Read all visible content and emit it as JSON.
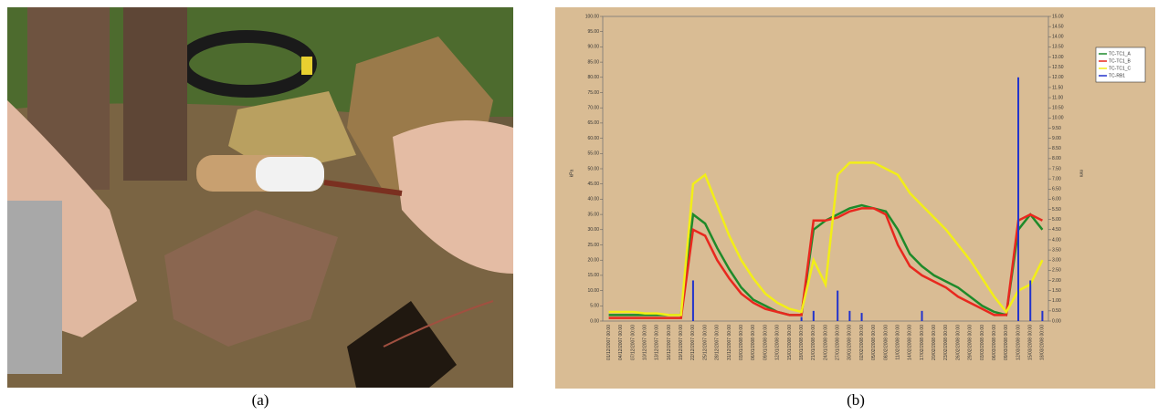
{
  "captions": {
    "a": "(a)",
    "b": "(b)"
  },
  "chart_data": {
    "type": "line",
    "ylabel": "kPa",
    "y2label": "mm",
    "categories": [
      "01/12/2007 00:00",
      "04/12/2007 00:00",
      "07/12/2007 00:00",
      "10/12/2007 00:00",
      "13/12/2007 00:00",
      "16/12/2007 00:00",
      "19/12/2007 00:00",
      "22/12/2007 00:00",
      "25/12/2007 00:00",
      "28/12/2007 00:00",
      "31/12/2007 00:00",
      "03/01/2008 00:00",
      "06/01/2008 00:00",
      "09/01/2008 00:00",
      "12/01/2008 00:00",
      "15/01/2008 00:00",
      "18/01/2008 00:00",
      "21/01/2008 00:00",
      "24/01/2008 00:00",
      "27/01/2008 00:00",
      "30/01/2008 00:00",
      "02/02/2008 00:00",
      "05/02/2008 00:00",
      "08/02/2008 00:00",
      "11/02/2008 00:00",
      "14/02/2008 00:00",
      "17/02/2008 00:00",
      "20/02/2008 00:00",
      "23/02/2008 00:00",
      "26/02/2008 00:00",
      "29/02/2008 00:00",
      "03/03/2008 00:00",
      "06/03/2008 00:00",
      "09/03/2008 00:00",
      "12/03/2008 00:00",
      "15/03/2008 00:00",
      "18/03/2008 00:00"
    ],
    "series": [
      {
        "name": "TC-TC1_A",
        "color": "#1e8a2a",
        "values": [
          2,
          2,
          2,
          2,
          2,
          2,
          2,
          35,
          32,
          24,
          17,
          11,
          7,
          5,
          3,
          2,
          2,
          30,
          33,
          35,
          37,
          38,
          37,
          36,
          30,
          22,
          18,
          15,
          13,
          11,
          8,
          5,
          3,
          2,
          30,
          35,
          30
        ]
      },
      {
        "name": "TC-TC1_B",
        "color": "#e8281e",
        "values": [
          1,
          1,
          1,
          1,
          1,
          1,
          1,
          30,
          28,
          20,
          14,
          9,
          6,
          4,
          3,
          2,
          2,
          33,
          33,
          34,
          36,
          37,
          37,
          35,
          25,
          18,
          15,
          13,
          11,
          8,
          6,
          4,
          2,
          2,
          33,
          35,
          33
        ]
      },
      {
        "name": "TC-TC1_C",
        "color": "#f2ee18",
        "values": [
          3,
          3,
          3,
          2.5,
          2.5,
          2,
          2,
          45,
          48,
          38,
          28,
          20,
          14,
          9,
          6,
          4,
          3,
          20,
          12,
          48,
          52,
          52,
          52,
          50,
          48,
          42,
          38,
          34,
          30,
          25,
          20,
          14,
          8,
          3,
          10,
          12,
          20
        ]
      },
      {
        "name": "TC-RB1",
        "color": "#2233cc",
        "axis": "y2",
        "style": "bar",
        "values": [
          0,
          0,
          0,
          0,
          0,
          0,
          0,
          2,
          0,
          0,
          0,
          0,
          0,
          0,
          0,
          0,
          0.2,
          0.5,
          0,
          1.5,
          0.5,
          0.4,
          0,
          0,
          0,
          0,
          0.5,
          0,
          0,
          0,
          0,
          0,
          0,
          0,
          12,
          2,
          0.5
        ]
      }
    ],
    "ylim": [
      0,
      100
    ],
    "yticks": [
      {
        "value": 0,
        "label": "0.00"
      },
      {
        "value": 5,
        "label": "5.00"
      },
      {
        "value": 10,
        "label": "10.00"
      },
      {
        "value": 15,
        "label": "15.00"
      },
      {
        "value": 20,
        "label": "20.00"
      },
      {
        "value": 25,
        "label": "25.00"
      },
      {
        "value": 30,
        "label": "30.00"
      },
      {
        "value": 35,
        "label": "35.00"
      },
      {
        "value": 40,
        "label": "40.00"
      },
      {
        "value": 45,
        "label": "45.00"
      },
      {
        "value": 50,
        "label": "50.00"
      },
      {
        "value": 55,
        "label": "55.00"
      },
      {
        "value": 60,
        "label": "60.00"
      },
      {
        "value": 65,
        "label": "65.00"
      },
      {
        "value": 70,
        "label": "70.00"
      },
      {
        "value": 75,
        "label": "75.00"
      },
      {
        "value": 80,
        "label": "80.00"
      },
      {
        "value": 85,
        "label": "85.00"
      },
      {
        "value": 90,
        "label": "90.00"
      },
      {
        "value": 95,
        "label": "95.00"
      },
      {
        "value": 100,
        "label": "100.00"
      }
    ],
    "y2lim": [
      0,
      15
    ],
    "y2ticks": [
      {
        "value": 0,
        "label": "0.00"
      },
      {
        "value": 0.5,
        "label": "0.50"
      },
      {
        "value": 1,
        "label": "1.00"
      },
      {
        "value": 1.5,
        "label": "1.50"
      },
      {
        "value": 2,
        "label": "2.00"
      },
      {
        "value": 2.5,
        "label": "2.50"
      },
      {
        "value": 3,
        "label": "3.00"
      },
      {
        "value": 3.5,
        "label": "3.50"
      },
      {
        "value": 4,
        "label": "4.00"
      },
      {
        "value": 4.5,
        "label": "4.50"
      },
      {
        "value": 5,
        "label": "5.00"
      },
      {
        "value": 5.5,
        "label": "5.50"
      },
      {
        "value": 6,
        "label": "6.00"
      },
      {
        "value": 6.5,
        "label": "6.50"
      },
      {
        "value": 7,
        "label": "7.00"
      },
      {
        "value": 7.5,
        "label": "7.50"
      },
      {
        "value": 8,
        "label": "8.00"
      },
      {
        "value": 8.5,
        "label": "8.50"
      },
      {
        "value": 9,
        "label": "9.00"
      },
      {
        "value": 9.5,
        "label": "9.50"
      },
      {
        "value": 10,
        "label": "10.00"
      },
      {
        "value": 10.5,
        "label": "10.50"
      },
      {
        "value": 11,
        "label": "11.00"
      },
      {
        "value": 11.5,
        "label": "11.50"
      },
      {
        "value": 12,
        "label": "12.00"
      },
      {
        "value": 12.5,
        "label": "12.50"
      },
      {
        "value": 13,
        "label": "13.00"
      },
      {
        "value": 13.5,
        "label": "13.50"
      },
      {
        "value": 14,
        "label": "14.00"
      },
      {
        "value": 14.5,
        "label": "14.50"
      },
      {
        "value": 15,
        "label": "15.00"
      }
    ],
    "legend": "outside-right"
  }
}
